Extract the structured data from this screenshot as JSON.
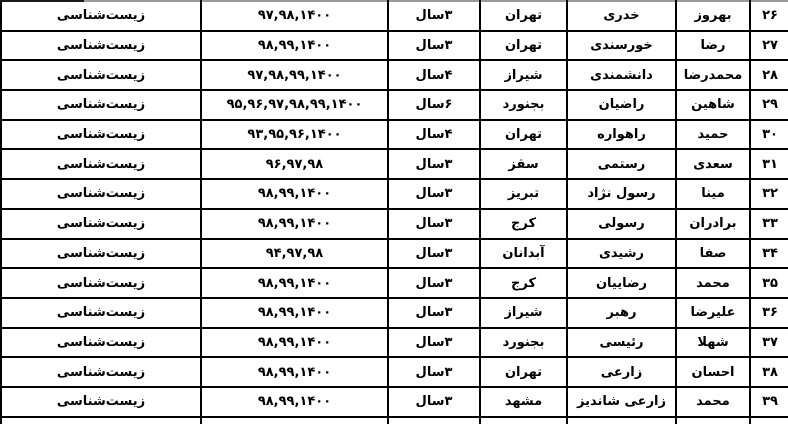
{
  "table": {
    "direction": "rtl",
    "field_note": "all rows share the same field value",
    "rows": [
      {
        "no": "۲۶",
        "first": "بهروز",
        "last": "خدری",
        "city": "تهران",
        "duration": "۳سال",
        "years": "۹۷,۹۸,۱۴۰۰",
        "field": "زیست‌شناسی"
      },
      {
        "no": "۲۷",
        "first": "رضا",
        "last": "خورسندی",
        "city": "تهران",
        "duration": "۳سال",
        "years": "۹۸,۹۹,۱۴۰۰",
        "field": "زیست‌شناسی"
      },
      {
        "no": "۲۸",
        "first": "محمدرضا",
        "last": "دانشمندی",
        "city": "شیراز",
        "duration": "۴سال",
        "years": "۹۷,۹۸,۹۹,۱۴۰۰",
        "field": "زیست‌شناسی"
      },
      {
        "no": "۲۹",
        "first": "شاهین",
        "last": "راضیان",
        "city": "بجنورد",
        "duration": "۶سال",
        "years": "۹۵,۹۶,۹۷,۹۸,۹۹,۱۴۰۰",
        "field": "زیست‌شناسی"
      },
      {
        "no": "۳۰",
        "first": "حمید",
        "last": "راهواره",
        "city": "تهران",
        "duration": "۴سال",
        "years": "۹۳,۹۵,۹۶,۱۴۰۰",
        "field": "زیست‌شناسی"
      },
      {
        "no": "۳۱",
        "first": "سعدی",
        "last": "رستمی",
        "city": "سقز",
        "duration": "۳سال",
        "years": "۹۶,۹۷,۹۸",
        "field": "زیست‌شناسی"
      },
      {
        "no": "۳۲",
        "first": "مینا",
        "last": "رسول نژاد",
        "city": "تبریز",
        "duration": "۳سال",
        "years": "۹۸,۹۹,۱۴۰۰",
        "field": "زیست‌شناسی"
      },
      {
        "no": "۳۳",
        "first": "برادران",
        "last": "رسولی",
        "city": "کرج",
        "duration": "۳سال",
        "years": "۹۸,۹۹,۱۴۰۰",
        "field": "زیست‌شناسی"
      },
      {
        "no": "۳۴",
        "first": "صفا",
        "last": "رشیدی",
        "city": "آبدانان",
        "duration": "۳سال",
        "years": "۹۴,۹۷,۹۸",
        "field": "زیست‌شناسی"
      },
      {
        "no": "۳۵",
        "first": "محمد",
        "last": "رضاییان",
        "city": "کرج",
        "duration": "۳سال",
        "years": "۹۸,۹۹,۱۴۰۰",
        "field": "زیست‌شناسی"
      },
      {
        "no": "۳۶",
        "first": "علیرضا",
        "last": "رهبر",
        "city": "شیراز",
        "duration": "۳سال",
        "years": "۹۸,۹۹,۱۴۰۰",
        "field": "زیست‌شناسی"
      },
      {
        "no": "۳۷",
        "first": "شهلا",
        "last": "رئیسی",
        "city": "بجنورد",
        "duration": "۳سال",
        "years": "۹۸,۹۹,۱۴۰۰",
        "field": "زیست‌شناسی"
      },
      {
        "no": "۳۸",
        "first": "احسان",
        "last": "زارعی",
        "city": "تهران",
        "duration": "۳سال",
        "years": "۹۸,۹۹,۱۴۰۰",
        "field": "زیست‌شناسی"
      },
      {
        "no": "۳۹",
        "first": "محمد",
        "last": "زارعی شاندیز",
        "city": "مشهد",
        "duration": "۳سال",
        "years": "۹۸,۹۹,۱۴۰۰",
        "field": "زیست‌شناسی"
      }
    ]
  },
  "colors": {
    "text": "#000000",
    "grid_border": "#000000",
    "top_cut_line": "#9a9a9a",
    "background": "#ffffff"
  }
}
